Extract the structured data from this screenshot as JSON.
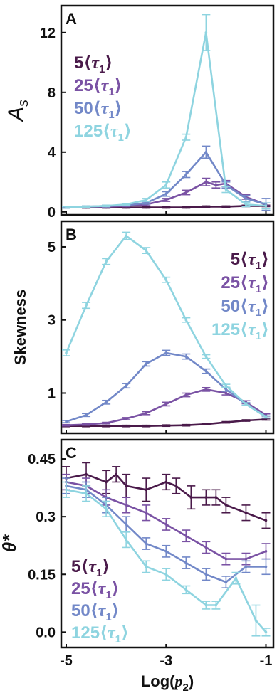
{
  "figure": {
    "xlabel": "Log(p₂)",
    "xticks": [
      -5,
      -3,
      -1
    ]
  },
  "colors": {
    "5": "#4a1a4a",
    "25": "#7a52a4",
    "50": "#7288c8",
    "125": "#8ed4e0",
    "frame": "#111111"
  },
  "chart_data": [
    {
      "type": "line",
      "panel_label": "A",
      "ylabel": "A_s",
      "xlim": [
        -5.1,
        -0.85
      ],
      "ylim": [
        -0.2,
        13.8
      ],
      "yticks": [
        0,
        4,
        8,
        12
      ],
      "ytick_labels": [
        "0",
        "4",
        "8",
        "12"
      ],
      "legend": {
        "position": "upper-left",
        "labels": [
          "5⟨τ₁⟩",
          "25⟨τ₁⟩",
          "50⟨τ₁⟩",
          "125⟨τ₁⟩"
        ]
      },
      "series": [
        {
          "key": "5",
          "x": [
            -5,
            -4.6,
            -4.2,
            -3.8,
            -3.4,
            -3.0,
            -2.6,
            -2.2,
            -1.8,
            -1.4,
            -1.0
          ],
          "y": [
            0.3,
            0.3,
            0.3,
            0.3,
            0.3,
            0.3,
            0.3,
            0.35,
            0.35,
            0.4,
            0.4
          ],
          "err": [
            0.05,
            0.05,
            0.05,
            0.05,
            0.05,
            0.05,
            0.05,
            0.05,
            0.05,
            0.05,
            0.05
          ]
        },
        {
          "key": "25",
          "x": [
            -5,
            -4.6,
            -4.2,
            -3.8,
            -3.4,
            -3.0,
            -2.6,
            -2.2,
            -2.0,
            -1.8,
            -1.4,
            -1.0
          ],
          "y": [
            0.3,
            0.35,
            0.35,
            0.4,
            0.5,
            0.8,
            1.3,
            2.0,
            1.8,
            1.9,
            1.0,
            0.5
          ],
          "err": [
            0.05,
            0.05,
            0.05,
            0.05,
            0.08,
            0.1,
            0.15,
            0.25,
            0.2,
            0.2,
            0.15,
            0.1
          ]
        },
        {
          "key": "50",
          "x": [
            -5,
            -4.6,
            -4.2,
            -3.8,
            -3.4,
            -3.0,
            -2.6,
            -2.2,
            -1.8,
            -1.4,
            -1.0
          ],
          "y": [
            0.3,
            0.35,
            0.4,
            0.45,
            0.6,
            1.2,
            2.5,
            4.0,
            1.8,
            0.9,
            0.5
          ],
          "err": [
            0.05,
            0.05,
            0.05,
            0.05,
            0.08,
            0.15,
            0.2,
            0.4,
            0.2,
            0.2,
            0.4
          ]
        },
        {
          "key": "125",
          "x": [
            -5,
            -4.6,
            -4.2,
            -3.8,
            -3.4,
            -3.0,
            -2.6,
            -2.2,
            -1.8,
            -1.4,
            -1.0
          ],
          "y": [
            0.3,
            0.35,
            0.4,
            0.5,
            0.8,
            1.8,
            5.0,
            12.0,
            1.5,
            0.5,
            0.4
          ],
          "err": [
            0.05,
            0.05,
            0.05,
            0.05,
            0.1,
            0.2,
            0.2,
            1.2,
            0.2,
            0.15,
            0.2
          ]
        }
      ]
    },
    {
      "type": "line",
      "panel_label": "B",
      "ylabel": "Skewness",
      "xlim": [
        -5.1,
        -0.85
      ],
      "ylim": [
        -0.1,
        5.7
      ],
      "yticks": [
        1,
        3,
        5
      ],
      "ytick_labels": [
        "1",
        "3",
        "5"
      ],
      "legend": {
        "position": "upper-right",
        "labels": [
          "5⟨τ₁⟩",
          "25⟨τ₁⟩",
          "50⟨τ₁⟩",
          "125⟨τ₁⟩"
        ]
      },
      "series": [
        {
          "key": "5",
          "x": [
            -5,
            -4.6,
            -4.2,
            -3.8,
            -3.4,
            -3.0,
            -2.6,
            -2.2,
            -1.8,
            -1.4,
            -1.0
          ],
          "y": [
            0.1,
            0.1,
            0.1,
            0.1,
            0.1,
            0.11,
            0.12,
            0.15,
            0.2,
            0.25,
            0.28
          ],
          "err": [
            0.02,
            0.02,
            0.02,
            0.02,
            0.02,
            0.02,
            0.02,
            0.02,
            0.02,
            0.02,
            0.02
          ]
        },
        {
          "key": "25",
          "x": [
            -5,
            -4.6,
            -4.2,
            -3.8,
            -3.4,
            -3.0,
            -2.6,
            -2.2,
            -1.8,
            -1.4,
            -1.0
          ],
          "y": [
            0.12,
            0.14,
            0.18,
            0.3,
            0.45,
            0.7,
            0.95,
            1.1,
            1.0,
            0.75,
            0.4
          ],
          "err": [
            0.02,
            0.02,
            0.02,
            0.03,
            0.04,
            0.05,
            0.05,
            0.05,
            0.05,
            0.04,
            0.03
          ]
        },
        {
          "key": "50",
          "x": [
            -5,
            -4.6,
            -4.2,
            -3.8,
            -3.4,
            -3.0,
            -2.6,
            -2.2,
            -1.8,
            -1.4,
            -1.0
          ],
          "y": [
            0.22,
            0.4,
            0.75,
            1.2,
            1.8,
            2.1,
            2.0,
            1.6,
            1.1,
            0.7,
            0.35
          ],
          "err": [
            0.03,
            0.04,
            0.05,
            0.06,
            0.06,
            0.07,
            0.07,
            0.06,
            0.05,
            0.04,
            0.03
          ]
        },
        {
          "key": "125",
          "x": [
            -5,
            -4.6,
            -4.2,
            -3.8,
            -3.4,
            -3.0,
            -2.6,
            -2.2,
            -1.8,
            -1.4,
            -1.0
          ],
          "y": [
            2.1,
            3.4,
            4.6,
            5.3,
            4.9,
            4.1,
            3.0,
            2.0,
            1.2,
            0.7,
            0.35
          ],
          "err": [
            0.08,
            0.08,
            0.08,
            0.1,
            0.08,
            0.07,
            0.06,
            0.05,
            0.04,
            0.03,
            0.03
          ]
        }
      ]
    },
    {
      "type": "line",
      "panel_label": "C",
      "ylabel": "θ*",
      "xlim": [
        -5.1,
        -0.85
      ],
      "ylim": [
        -0.04,
        0.5
      ],
      "yticks": [
        0.0,
        0.15,
        0.3,
        0.45
      ],
      "ytick_labels": [
        "0.0",
        "0.15",
        "0.3",
        "0.45"
      ],
      "legend": {
        "position": "lower-left",
        "labels": [
          "5⟨τ₁⟩",
          "25⟨τ₁⟩",
          "50⟨τ₁⟩",
          "125⟨τ₁⟩"
        ]
      },
      "series": [
        {
          "key": "5",
          "x": [
            -5,
            -4.6,
            -4.2,
            -4.0,
            -3.8,
            -3.4,
            -3.0,
            -2.8,
            -2.5,
            -2.2,
            -2.0,
            -1.8,
            -1.4,
            -1.0
          ],
          "y": [
            0.4,
            0.41,
            0.39,
            0.41,
            0.38,
            0.37,
            0.39,
            0.38,
            0.35,
            0.35,
            0.35,
            0.33,
            0.31,
            0.29
          ],
          "err": [
            0.03,
            0.03,
            0.03,
            0.02,
            0.03,
            0.03,
            0.02,
            0.02,
            0.03,
            0.02,
            0.02,
            0.02,
            0.02,
            0.02
          ]
        },
        {
          "key": "25",
          "x": [
            -5,
            -4.6,
            -4.2,
            -3.8,
            -3.4,
            -3.0,
            -2.6,
            -2.2,
            -1.8,
            -1.4,
            -1.0
          ],
          "y": [
            0.39,
            0.38,
            0.35,
            0.33,
            0.31,
            0.28,
            0.25,
            0.22,
            0.19,
            0.19,
            0.21
          ],
          "err": [
            0.02,
            0.02,
            0.02,
            0.02,
            0.02,
            0.015,
            0.015,
            0.015,
            0.015,
            0.015,
            0.02
          ]
        },
        {
          "key": "50",
          "x": [
            -5,
            -4.6,
            -4.2,
            -3.8,
            -3.4,
            -3.0,
            -2.6,
            -2.2,
            -1.8,
            -1.4,
            -1.0
          ],
          "y": [
            0.38,
            0.37,
            0.33,
            0.28,
            0.23,
            0.21,
            0.18,
            0.15,
            0.13,
            0.17,
            0.17
          ],
          "err": [
            0.02,
            0.02,
            0.02,
            0.02,
            0.015,
            0.015,
            0.015,
            0.015,
            0.015,
            0.015,
            0.02
          ]
        },
        {
          "key": "125",
          "x": [
            -5,
            -4.6,
            -4.2,
            -3.8,
            -3.4,
            -3.0,
            -2.6,
            -2.2,
            -2.0,
            -1.6,
            -1.2,
            -1.0
          ],
          "y": [
            0.37,
            0.36,
            0.32,
            0.24,
            0.17,
            0.15,
            0.11,
            0.07,
            0.07,
            0.14,
            0.03,
            0.0
          ],
          "err": [
            0.02,
            0.02,
            0.02,
            0.02,
            0.015,
            0.015,
            0.01,
            0.01,
            0.01,
            0.015,
            0.04,
            0.01
          ]
        }
      ]
    }
  ]
}
